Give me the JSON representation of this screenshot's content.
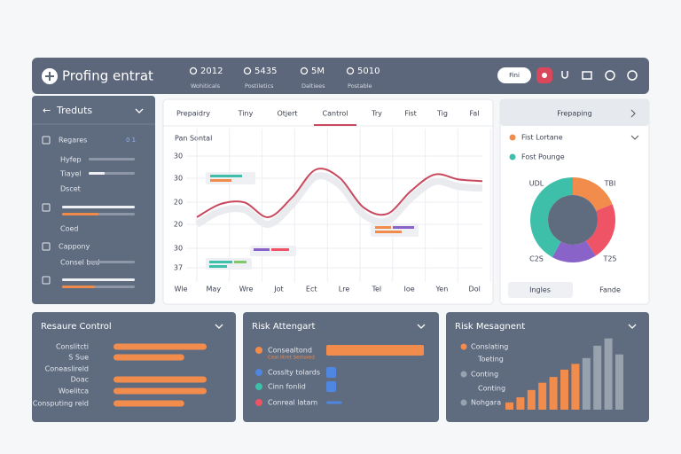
{
  "header": {
    "title": "Profing entrat",
    "stats": [
      {
        "value": "2012",
        "label": "Wohiticals"
      },
      {
        "value": "5435",
        "label": "Postiletics"
      },
      {
        "value": "5M",
        "label": "Daltiees"
      },
      {
        "value": "5010",
        "label": "Postable"
      }
    ],
    "button": "Fini"
  },
  "sidebar": {
    "title": "Treduts",
    "items": [
      {
        "label": "Regares",
        "badge": "0 1"
      },
      {
        "label": "Hyfep",
        "bars": [
          {
            "value": 100,
            "color": "#8d97a7"
          }
        ]
      },
      {
        "label": "Tiayel",
        "bars": [
          {
            "value": 35,
            "color": "#eef0f4"
          }
        ]
      },
      {
        "label": "Dscet"
      },
      {
        "label": null,
        "bars": [
          {
            "value": 100,
            "color": "#eef0f4"
          },
          {
            "value": 50,
            "color": "#f08a4b"
          }
        ]
      },
      {
        "label": "Coed"
      },
      {
        "label": "Cappony"
      },
      {
        "label": "Consel bed",
        "bars": [
          {
            "value": 100,
            "color": "#8d97a7"
          }
        ]
      },
      {
        "label": null,
        "bars": [
          {
            "value": 100,
            "color": "#eef0f4"
          },
          {
            "value": 45,
            "color": "#f08a4b"
          }
        ]
      }
    ]
  },
  "main": {
    "tabs": [
      "Prepaidry",
      "Tiny",
      "Otjert",
      "Cantrol",
      "Try",
      "Fist",
      "Tig",
      "Fal"
    ],
    "active_tab": 3,
    "subtitle": "Pan Sontal",
    "y_labels": [
      "30",
      "30",
      "20",
      "20",
      "30",
      "37"
    ],
    "x_labels": [
      "Wle",
      "May",
      "Wre",
      "Jot",
      "Ect",
      "Lre",
      "Tel",
      "Ioe",
      "Yen",
      "Dol"
    ],
    "ylim": [
      0,
      100
    ],
    "line": {
      "color": "#c8495e",
      "values": [
        46,
        54,
        55,
        46,
        58,
        75,
        70,
        52,
        48,
        62,
        72,
        69,
        68
      ]
    }
  },
  "pie": {
    "title": "Frepaping",
    "legend": [
      {
        "label": "Fist Lortane",
        "color": "#f28c4c"
      },
      {
        "label": "Fost Pounge",
        "color": "#3dbfaa"
      }
    ],
    "segments": [
      {
        "value": 19,
        "color": "#f28c4c"
      },
      {
        "value": 22,
        "color": "#ee5466"
      },
      {
        "value": 17,
        "color": "#8a63c9"
      },
      {
        "value": 42,
        "color": "#3dbfaa"
      }
    ],
    "labels": [
      "UDL",
      "TBI",
      "C2S",
      "T25"
    ],
    "buttons": [
      "Ingles",
      "Fande"
    ]
  },
  "resource": {
    "title": "Resaure Control",
    "rows": [
      {
        "label": "Conslitcti",
        "value": 100
      },
      {
        "label": "S Sue",
        "value": 76
      },
      {
        "label": "Coneaslireld",
        "value": null
      },
      {
        "label": "Doac",
        "value": 100
      },
      {
        "label": "Woelitca",
        "value": 100
      },
      {
        "label": "Consputing reld",
        "value": 76
      }
    ]
  },
  "risk": {
    "title": "Risk Attengart",
    "rows": [
      {
        "label": "Consealtond",
        "sub": "Ceal litret Sestored",
        "color": "#f28c4c",
        "value": 100
      },
      {
        "label": "Cosslty tolards",
        "color": "#4f86e0",
        "value": 10
      },
      {
        "label": "Cinn fonlid",
        "color": "#3dbfaa",
        "value": 10
      },
      {
        "label": "Conreal latam",
        "color": "#ee5466",
        "value": 16
      }
    ]
  },
  "management": {
    "title": "Risk Mesagnent",
    "legend": [
      {
        "label": "Conslating",
        "color": "#f28c4c"
      },
      {
        "label": "Toeting",
        "color": null
      },
      {
        "label": "Conting",
        "color": "#98a1ae"
      },
      {
        "label": "Conting",
        "color": null
      },
      {
        "label": "Nohgara",
        "color": "#98a1ae"
      }
    ],
    "ylim": [
      0,
      100
    ],
    "bars": [
      {
        "value": 10,
        "color": "#f28c4c"
      },
      {
        "value": 17,
        "color": "#f28c4c"
      },
      {
        "value": 27,
        "color": "#f28c4c"
      },
      {
        "value": 37,
        "color": "#f28c4c"
      },
      {
        "value": 45,
        "color": "#f28c4c"
      },
      {
        "value": 55,
        "color": "#f28c4c"
      },
      {
        "value": 63,
        "color": "#f28c4c"
      },
      {
        "value": 71,
        "color": "#98a1ae"
      },
      {
        "value": 88,
        "color": "#98a1ae"
      },
      {
        "value": 98,
        "color": "#98a1ae"
      },
      {
        "value": 76,
        "color": "#98a1ae"
      }
    ]
  }
}
